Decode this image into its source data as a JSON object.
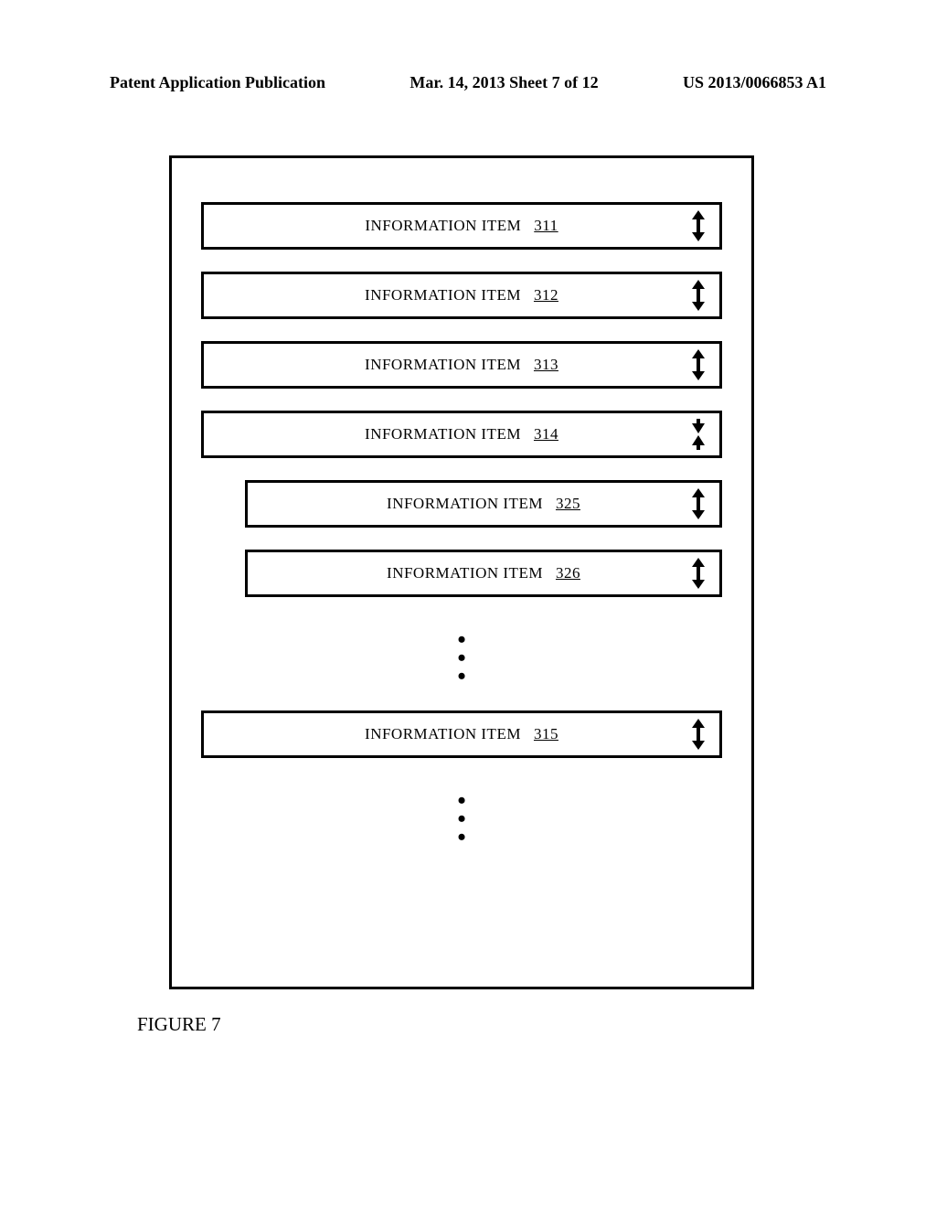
{
  "header": {
    "left": "Patent Application Publication",
    "center": "Mar. 14, 2013  Sheet 7 of 12",
    "right": "US 2013/0066853 A1"
  },
  "diagram": {
    "type": "flow-list",
    "border_color": "#000000",
    "background_color": "#ffffff",
    "box_border_width": 3,
    "item_label_prefix": "INFORMATION ITEM",
    "label_fontsize": 17,
    "items": [
      {
        "num": "311",
        "indent": false,
        "arrow": "updown"
      },
      {
        "num": "312",
        "indent": false,
        "arrow": "updown"
      },
      {
        "num": "313",
        "indent": false,
        "arrow": "updown"
      },
      {
        "num": "314",
        "indent": false,
        "arrow": "collapse"
      },
      {
        "num": "325",
        "indent": true,
        "arrow": "updown"
      },
      {
        "num": "326",
        "indent": true,
        "arrow": "updown"
      },
      {
        "type": "vdots"
      },
      {
        "num": "315",
        "indent": false,
        "arrow": "updown"
      },
      {
        "type": "vdots"
      }
    ]
  },
  "figure_caption": "FIGURE 7"
}
